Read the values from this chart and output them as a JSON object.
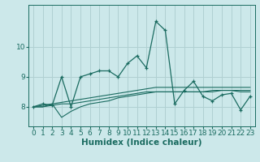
{
  "title": "",
  "xlabel": "Humidex (Indice chaleur)",
  "background_color": "#cce8ea",
  "grid_color": "#b0d0d2",
  "line_color": "#1a6b60",
  "x_values": [
    0,
    1,
    2,
    3,
    4,
    5,
    6,
    7,
    8,
    9,
    10,
    11,
    12,
    13,
    14,
    15,
    16,
    17,
    18,
    19,
    20,
    21,
    22,
    23
  ],
  "series": [
    [
      8.0,
      8.1,
      8.05,
      9.0,
      8.0,
      9.0,
      9.1,
      9.2,
      9.2,
      9.0,
      9.45,
      9.7,
      9.3,
      10.85,
      10.55,
      8.1,
      8.55,
      8.85,
      8.35,
      8.2,
      8.4,
      8.45,
      7.9,
      8.35
    ],
    [
      8.0,
      8.0,
      8.1,
      7.65,
      7.85,
      8.0,
      8.1,
      8.15,
      8.2,
      8.3,
      8.35,
      8.4,
      8.45,
      8.5,
      8.5,
      8.5,
      8.5,
      8.5,
      8.5,
      8.5,
      8.55,
      8.55,
      8.5,
      8.5
    ],
    [
      8.0,
      8.0,
      8.05,
      8.1,
      8.1,
      8.15,
      8.2,
      8.25,
      8.3,
      8.35,
      8.4,
      8.45,
      8.5,
      8.5,
      8.5,
      8.5,
      8.5,
      8.5,
      8.5,
      8.55,
      8.55,
      8.55,
      8.55,
      8.55
    ],
    [
      8.0,
      8.05,
      8.1,
      8.15,
      8.2,
      8.25,
      8.3,
      8.35,
      8.4,
      8.45,
      8.5,
      8.55,
      8.6,
      8.65,
      8.65,
      8.65,
      8.65,
      8.65,
      8.65,
      8.65,
      8.65,
      8.65,
      8.65,
      8.65
    ]
  ],
  "yticks": [
    8,
    9,
    10
  ],
  "ylim": [
    7.35,
    11.4
  ],
  "xlim": [
    -0.5,
    23.5
  ],
  "xticks": [
    0,
    1,
    2,
    3,
    4,
    5,
    6,
    7,
    8,
    9,
    10,
    11,
    12,
    13,
    14,
    15,
    16,
    17,
    18,
    19,
    20,
    21,
    22,
    23
  ],
  "tick_fontsize": 6.5,
  "xlabel_fontsize": 7.5
}
